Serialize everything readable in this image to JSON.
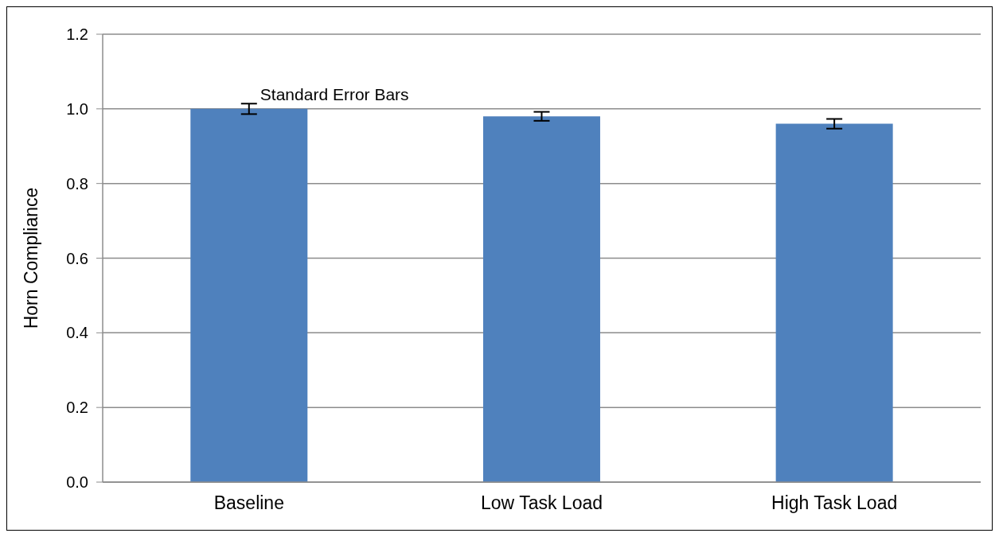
{
  "chart_data": {
    "type": "bar",
    "ylabel": "Horn Compliance",
    "categories": [
      "Baseline",
      "Low Task Load",
      "High Task Load"
    ],
    "values": [
      1.0,
      0.98,
      0.96
    ],
    "errors": [
      0.014,
      0.012,
      0.013
    ],
    "color": "#4f81bd",
    "ylim": [
      0,
      1.2
    ],
    "yticks": [
      {
        "value": 0,
        "label": "0.0"
      },
      0.2,
      0.4,
      0.6,
      0.8,
      {
        "value": 1,
        "label": "1.0"
      },
      1.2
    ],
    "grid": "y",
    "annotations": [
      {
        "text": "Standard Error Bars",
        "x": "Baseline",
        "y": 1.014
      }
    ]
  }
}
